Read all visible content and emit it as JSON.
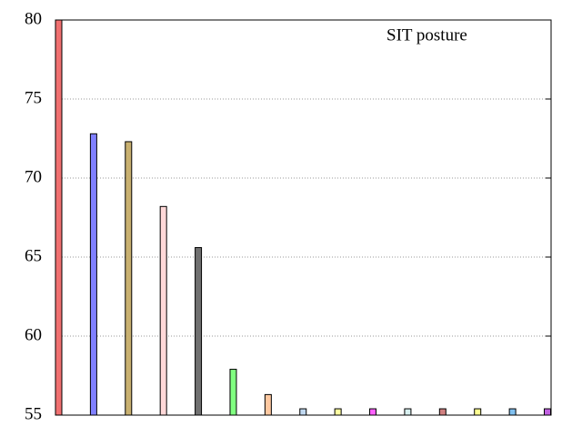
{
  "chart_data": {
    "type": "bar",
    "title": "SIT posture",
    "values": [
      80,
      72.8,
      72.3,
      68.2,
      65.6,
      57.9,
      56.3,
      55.4,
      55.4,
      55.4,
      55.4,
      55.4,
      55.4,
      55.4,
      55.4
    ],
    "colors": [
      "#f07070",
      "#8080ff",
      "#c8b070",
      "#ffd8d8",
      "#707070",
      "#80ff80",
      "#ffc8a0",
      "#c0d8f0",
      "#ffffa0",
      "#ff60ff",
      "#d8f0f0",
      "#d08080",
      "#ffff90",
      "#80c0f0",
      "#c060e0"
    ],
    "ylim": [
      55,
      80
    ],
    "yticks": [
      55,
      60,
      65,
      70,
      75,
      80
    ],
    "grid": true
  }
}
